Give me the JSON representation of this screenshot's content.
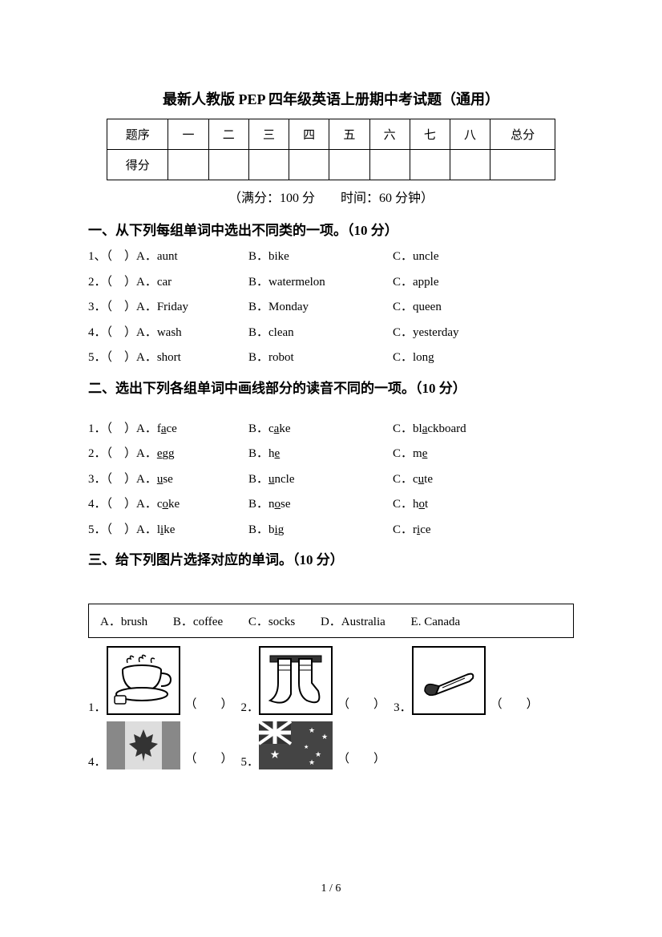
{
  "title": "最新人教版 PEP 四年级英语上册期中考试题（通用）",
  "scoreTable": {
    "rowLabels": [
      "题序",
      "得分"
    ],
    "cols": [
      "一",
      "二",
      "三",
      "四",
      "五",
      "六",
      "七",
      "八"
    ],
    "totalLabel": "总分"
  },
  "subtitle": "（满分：100 分　　时间：60 分钟）",
  "section1": {
    "heading": "一、从下列每组单词中选出不同类的一项。（10 分）",
    "items": [
      {
        "n": "1、",
        "a": "A．aunt",
        "b": "B．bike",
        "c": "C．uncle"
      },
      {
        "n": "2．",
        "a": "A．car",
        "b": "B．watermelon",
        "c": "C．apple"
      },
      {
        "n": "3．",
        "a": "A．Friday",
        "b": "B．Monday",
        "c": "C．queen"
      },
      {
        "n": "4．",
        "a": "A．wash",
        "b": "B．clean",
        "c": "C．yesterday"
      },
      {
        "n": "5．",
        "a": "A．short",
        "b": "B．robot",
        "c": "C．long"
      }
    ]
  },
  "section2": {
    "heading": "二、选出下列各组单词中画线部分的读音不同的一项。（10 分）",
    "items": [
      {
        "n": "1．",
        "a": {
          "pre": "A．f",
          "u": "a",
          "post": "ce"
        },
        "b": {
          "pre": "B．c",
          "u": "a",
          "post": "ke"
        },
        "c": {
          "pre": "C．bl",
          "u": "a",
          "post": "ckboard"
        }
      },
      {
        "n": "2．",
        "a": {
          "pre": "A．",
          "u": "e",
          "post": "gg"
        },
        "b": {
          "pre": "B．h",
          "u": "e",
          "post": ""
        },
        "c": {
          "pre": "C．m",
          "u": "e",
          "post": ""
        }
      },
      {
        "n": "3．",
        "a": {
          "pre": "A．",
          "u": "u",
          "post": "se"
        },
        "b": {
          "pre": "B．",
          "u": "u",
          "post": "ncle"
        },
        "c": {
          "pre": "C．c",
          "u": "u",
          "post": "te"
        }
      },
      {
        "n": "4．",
        "a": {
          "pre": "A．c",
          "u": "o",
          "post": "ke"
        },
        "b": {
          "pre": "B．n",
          "u": "o",
          "post": "se"
        },
        "c": {
          "pre": "C．h",
          "u": "o",
          "post": "t"
        }
      },
      {
        "n": "5．",
        "a": {
          "pre": "A．l",
          "u": "i",
          "post": "ke"
        },
        "b": {
          "pre": "B．b",
          "u": "i",
          "post": "g"
        },
        "c": {
          "pre": "C．r",
          "u": "i",
          "post": "ce"
        }
      }
    ]
  },
  "section3": {
    "heading": "三、给下列图片选择对应的单词。（10 分）",
    "options": [
      "A．brush",
      "B．coffee",
      "C．socks",
      "D．Australia",
      "E. Canada"
    ],
    "picLabels": [
      "1．",
      "2．",
      "3．",
      "4．",
      "5．"
    ],
    "paren": "（　　）"
  },
  "pageNum": "1 / 6",
  "colors": {
    "text": "#000000",
    "background": "#ffffff",
    "border": "#000000"
  },
  "fonts": {
    "chinese": "SimSun",
    "latin": "Times New Roman",
    "titleSize": 18,
    "headingSize": 17,
    "bodySize": 15
  }
}
